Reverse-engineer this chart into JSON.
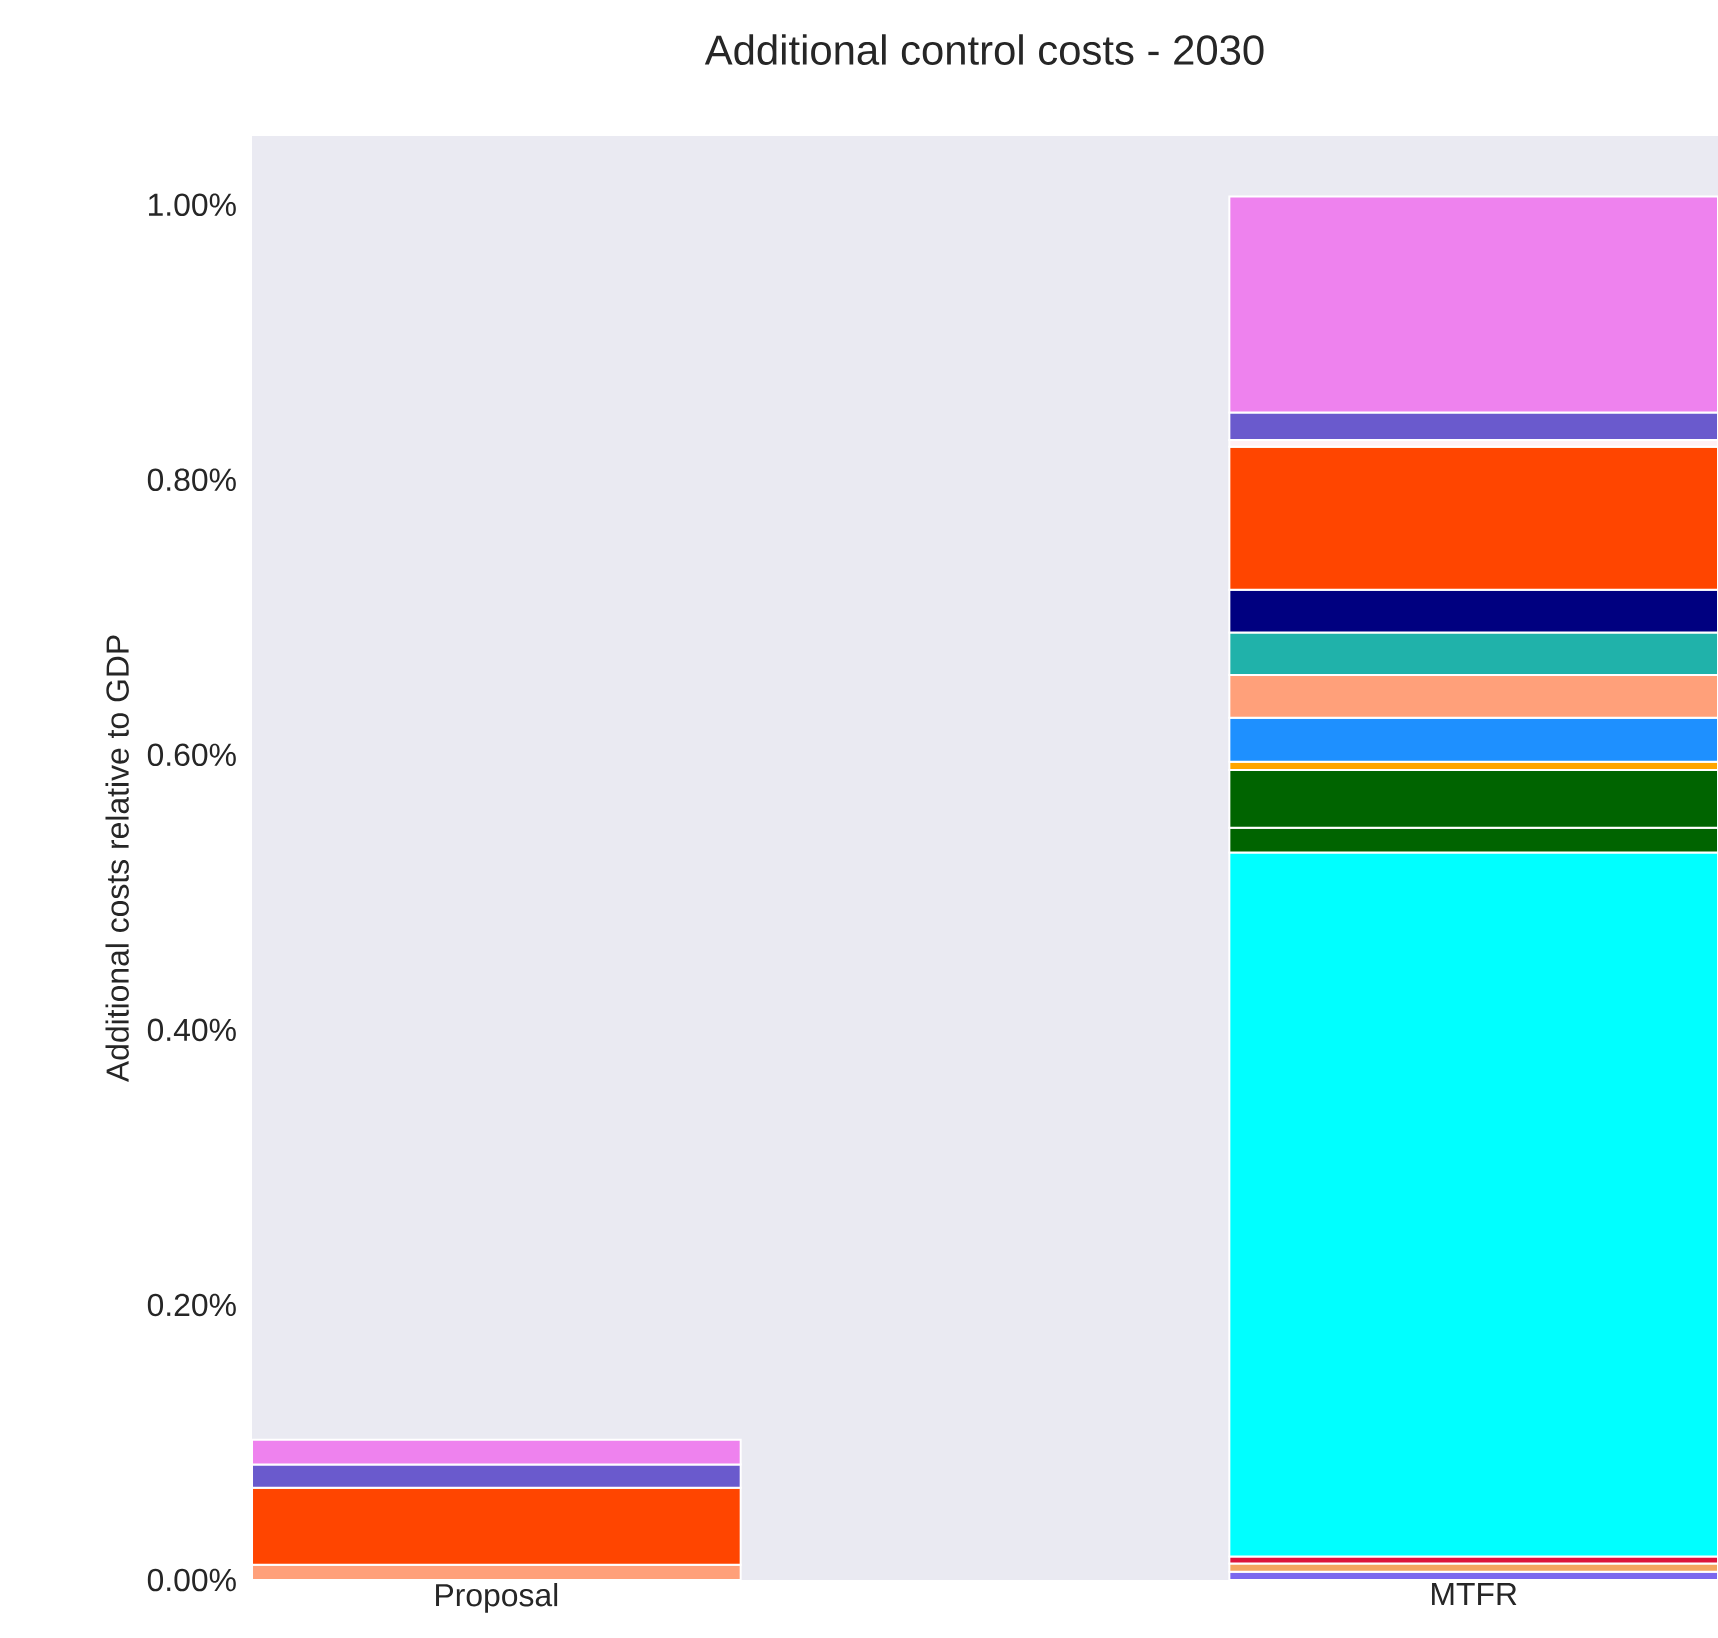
{
  "chart_data": {
    "type": "bar",
    "stacked": true,
    "title": "Additional control costs - 2030",
    "ylabel": "Additional costs relative to GDP",
    "categories": [
      "Proposal",
      "MTFR"
    ],
    "ylim": [
      0,
      1.05
    ],
    "yticks": [
      {
        "value": 0,
        "label": "0.00%"
      },
      {
        "value": 0.2,
        "label": "0.20%"
      },
      {
        "value": 0.4,
        "label": "0.40%"
      },
      {
        "value": 0.6,
        "label": "0.60%"
      },
      {
        "value": 0.8,
        "label": "0.80%"
      },
      {
        "value": 1.0,
        "label": "1.00%"
      }
    ],
    "series": [
      {
        "color": "#7b68ee",
        "values": [
          null,
          0.006
        ]
      },
      {
        "color": "#f4a460",
        "values": [
          null,
          0.006
        ]
      },
      {
        "color": "#dc143c",
        "values": [
          null,
          0.005
        ]
      },
      {
        "color": "#00ffff",
        "values": [
          null,
          0.512
        ]
      },
      {
        "color": "#006400",
        "values": [
          null,
          0.018
        ]
      },
      {
        "color": "#006400",
        "values": [
          null,
          0.042
        ]
      },
      {
        "color": "#ffa500",
        "values": [
          null,
          0.006
        ]
      },
      {
        "color": "#1e90ff",
        "values": [
          null,
          0.032
        ]
      },
      {
        "color": "#ffa07a",
        "values": [
          0.011,
          0.031
        ]
      },
      {
        "color": "#20b2aa",
        "values": [
          null,
          0.031
        ]
      },
      {
        "color": "#000080",
        "values": [
          null,
          0.031
        ]
      },
      {
        "color": "#ff4500",
        "values": [
          0.056,
          0.104
        ]
      },
      {
        "color": "#fff0f5",
        "values": [
          null,
          0.005
        ]
      },
      {
        "color": "#6a5acd",
        "values": [
          0.017,
          0.02
        ]
      },
      {
        "color": "#ee82ee",
        "values": [
          0.018,
          0.157
        ]
      }
    ]
  }
}
